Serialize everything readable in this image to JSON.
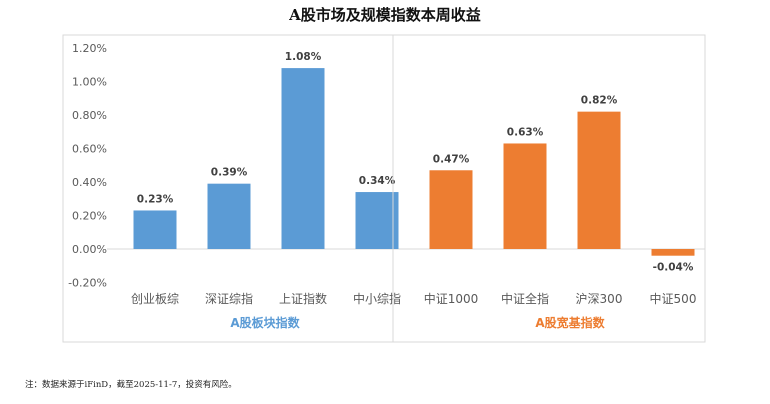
{
  "chart_data": {
    "type": "bar",
    "title": "A股市场及规模指数本周收益",
    "categories": [
      "创业板综",
      "深证综指",
      "上证指数",
      "中小综指",
      "中证1000",
      "中证全指",
      "沪深300",
      "中证500"
    ],
    "values": [
      0.23,
      0.39,
      1.08,
      0.34,
      0.47,
      0.63,
      0.82,
      -0.04
    ],
    "data_labels": [
      "0.23%",
      "0.39%",
      "1.08%",
      "0.34%",
      "0.47%",
      "0.63%",
      "0.82%",
      "-0.04%"
    ],
    "groups": [
      {
        "name": "A股板块指数",
        "count": 4,
        "color": "#5B9BD5"
      },
      {
        "name": "A股宽基指数",
        "count": 4,
        "color": "#ED7D31"
      }
    ],
    "yticks": [
      "-0.20%",
      "0.00%",
      "0.20%",
      "0.40%",
      "0.60%",
      "0.80%",
      "1.00%",
      "1.20%"
    ],
    "ytick_values": [
      -0.2,
      0,
      0.2,
      0.4,
      0.6,
      0.8,
      1.0,
      1.2
    ],
    "ylim": [
      -0.2,
      1.2
    ],
    "xlabel": "",
    "ylabel": "",
    "legend": "none",
    "grid": false
  },
  "footnote": "注：数据来源于iFinD，截至2025-11-7，投资有风险。"
}
